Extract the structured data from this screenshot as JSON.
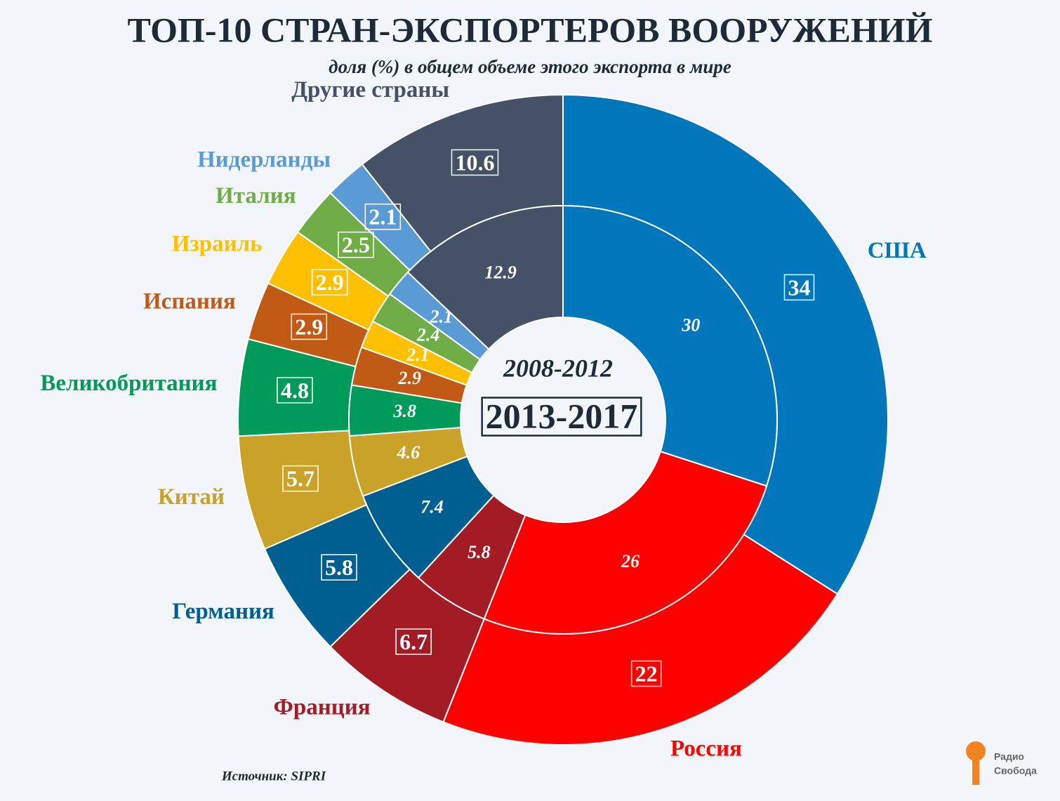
{
  "chart_data": {
    "type": "donut",
    "title": "ТОП-10 СТРАН-ЭКСПОРТЕРОВ ВООРУЖЕНИЙ",
    "subtitle": "доля (%) в общем объеме этого экспорта в мире",
    "categories": [
      "США",
      "Россия",
      "Франция",
      "Германия",
      "Китай",
      "Великобритания",
      "Испания",
      "Израиль",
      "Италия",
      "Нидерланды",
      "Другие страны"
    ],
    "colors": [
      "#0077bb",
      "#ff0000",
      "#a31c25",
      "#005f91",
      "#c9a227",
      "#009a5b",
      "#c05a14",
      "#ffc000",
      "#70ad47",
      "#5b9bd5",
      "#455166"
    ],
    "series": [
      {
        "name": "2013-2017",
        "values": [
          34,
          22,
          6.7,
          5.8,
          5.7,
          4.8,
          2.9,
          2.9,
          2.5,
          2.1,
          10.6
        ]
      },
      {
        "name": "2008-2012",
        "values": [
          30,
          26,
          5.8,
          7.4,
          4.6,
          3.8,
          2.9,
          2.1,
          2.4,
          2.1,
          12.9
        ]
      }
    ],
    "source": "Источник: SIPRI",
    "logo": [
      "Радио",
      "Свобода"
    ]
  }
}
